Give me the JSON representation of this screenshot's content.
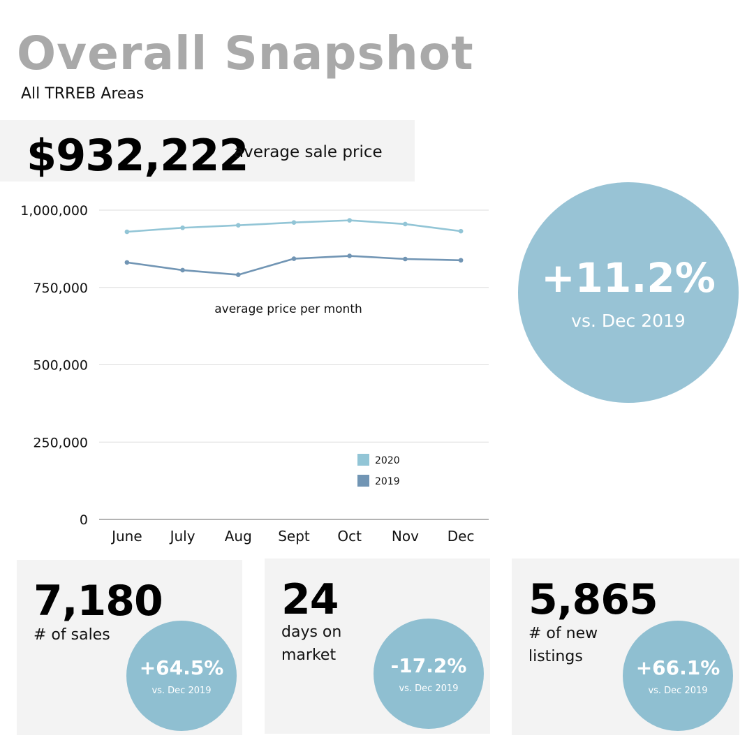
{
  "header": {
    "title": "Overall Snapshot",
    "subtitle": "All TRREB Areas"
  },
  "avg_price": {
    "value": "$932,222",
    "label": "average sale price"
  },
  "highlight": {
    "change": "+11.2%",
    "comparison": "vs. Dec 2019"
  },
  "stats": [
    {
      "value": "7,180",
      "label_line1": "# of sales",
      "label_line2": "",
      "change": "+64.5%",
      "comparison": "vs. Dec 2019"
    },
    {
      "value": "24",
      "label_line1": "days on",
      "label_line2": "market",
      "change": "-17.2%",
      "comparison": "vs. Dec 2019"
    },
    {
      "value": "5,865",
      "label_line1": "# of new",
      "label_line2": "listings",
      "change": "+66.1%",
      "comparison": "vs. Dec 2019"
    }
  ],
  "colors": {
    "series_2020": "#92c5d6",
    "series_2019": "#7195b4",
    "circle": "#98c3d5",
    "card_bg": "#f3f3f3"
  },
  "chart_data": {
    "type": "line",
    "title": "average price per month",
    "categories": [
      "June",
      "July",
      "Aug",
      "Sept",
      "Oct",
      "Nov",
      "Dec"
    ],
    "series": [
      {
        "name": "2020",
        "color": "#92c5d6",
        "values": [
          930000,
          943000,
          951000,
          960000,
          967000,
          955000,
          932000
        ]
      },
      {
        "name": "2019",
        "color": "#7195b4",
        "values": [
          831000,
          806000,
          791000,
          843000,
          852000,
          842000,
          838000
        ]
      }
    ],
    "yticks": [
      0,
      250000,
      500000,
      750000,
      1000000
    ],
    "ytick_labels": [
      "0",
      "250,000",
      "500,000",
      "750,000",
      "1,000,000"
    ],
    "ylim": [
      0,
      1000000
    ],
    "grid": true,
    "legend_position": "bottom-right"
  }
}
